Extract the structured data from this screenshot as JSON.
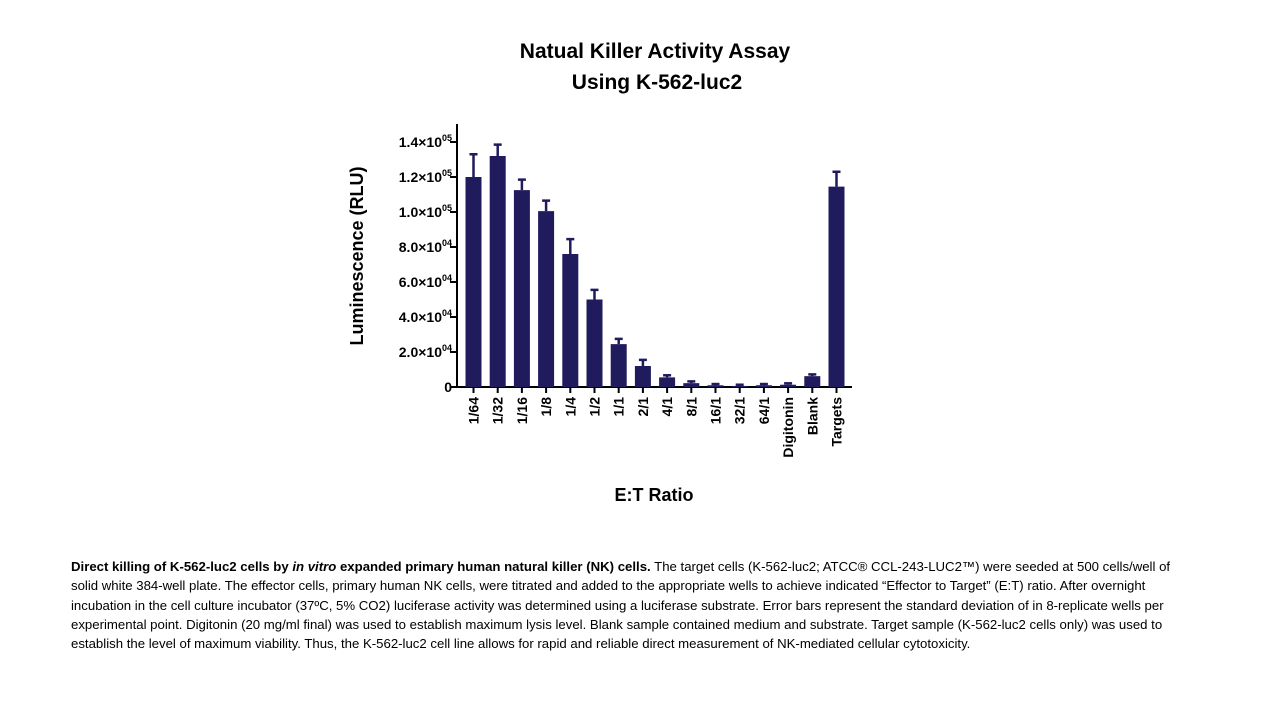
{
  "chart_data": {
    "type": "bar",
    "title": [
      "Natual Killer Activity Assay",
      "Using K-562-luc2"
    ],
    "xlabel": "E:T Ratio",
    "ylabel": "Luminescence (RLU)",
    "ylim": [
      0,
      140000
    ],
    "yticks": [
      {
        "value": 0,
        "mantissa": "0",
        "exp": ""
      },
      {
        "value": 20000,
        "mantissa": "2.0×10",
        "exp": "04"
      },
      {
        "value": 40000,
        "mantissa": "4.0×10",
        "exp": "04"
      },
      {
        "value": 60000,
        "mantissa": "6.0×10",
        "exp": "04"
      },
      {
        "value": 80000,
        "mantissa": "8.0×10",
        "exp": "04"
      },
      {
        "value": 100000,
        "mantissa": "1.0×10",
        "exp": "05"
      },
      {
        "value": 120000,
        "mantissa": "1.2×10",
        "exp": "05"
      },
      {
        "value": 140000,
        "mantissa": "1.4×10",
        "exp": "05"
      }
    ],
    "categories": [
      "1/64",
      "1/32",
      "1/16",
      "1/8",
      "1/4",
      "1/2",
      "1/1",
      "2/1",
      "4/1",
      "8/1",
      "16/1",
      "32/1",
      "64/1",
      "Digitonin",
      "Blank",
      "Targets"
    ],
    "values": [
      120000,
      132000,
      112500,
      100500,
      76000,
      50000,
      24500,
      12000,
      5500,
      2200,
      1000,
      600,
      1000,
      1300,
      6200,
      114500
    ],
    "errors": [
      13000,
      6500,
      6000,
      6000,
      8500,
      5500,
      3000,
      3500,
      1200,
      1000,
      700,
      700,
      700,
      800,
      1000,
      8500
    ],
    "bar_color": "#1f1b5c",
    "grid": false
  },
  "caption": {
    "bold_a": "Direct killing of K-562-luc2 cells by ",
    "bold_italic": "in vitro",
    "bold_b": " expanded primary human natural killer (NK) cells.",
    "body": " The target cells (K-562-luc2; ATCC® CCL-243-LUC2™) were seeded at 500 cells/well of solid white 384-well plate. The effector cells, primary human NK cells, were titrated and added to the appropriate wells to achieve indicated “Effector to Target” (E:T) ratio. After overnight incubation in the cell culture incubator (37ºC, 5% CO2) luciferase activity was determined using a luciferase substrate. Error bars represent the standard deviation of in 8-replicate wells per experimental point. Digitonin (20 mg/ml final) was used to establish maximum lysis level. Blank sample contained medium and substrate. Target sample (K-562-luc2 cells only) was used to establish the level of maximum viability. Thus, the K-562-luc2 cell line allows for rapid and reliable direct measurement of NK-mediated cellular cytotoxicity."
  }
}
